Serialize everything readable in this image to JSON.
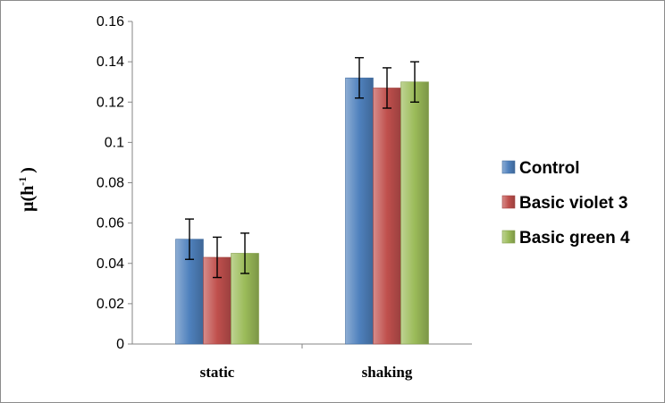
{
  "chart_data": {
    "type": "bar",
    "title": "",
    "xlabel": "",
    "ylabel": "µ(h",
    "ylabel_sup": "-1",
    "ylabel_close": ")",
    "categories": [
      "static",
      "shaking"
    ],
    "ylim": [
      0,
      0.16
    ],
    "yticks": [
      "0",
      "0.02",
      "0.04",
      "0.06",
      "0.08",
      "0.1",
      "0.12",
      "0.14",
      "0.16"
    ],
    "grid": false,
    "legend_position": "right",
    "series": [
      {
        "name": "Control",
        "values": [
          0.052,
          0.132
        ],
        "errors": [
          0.01,
          0.01
        ],
        "color": "#4f81bd"
      },
      {
        "name": "Basic violet 3",
        "values": [
          0.043,
          0.127
        ],
        "errors": [
          0.01,
          0.01
        ],
        "color": "#c0504d"
      },
      {
        "name": "Basic green 4",
        "values": [
          0.045,
          0.13
        ],
        "errors": [
          0.01,
          0.01
        ],
        "color": "#9bbb59"
      }
    ]
  }
}
